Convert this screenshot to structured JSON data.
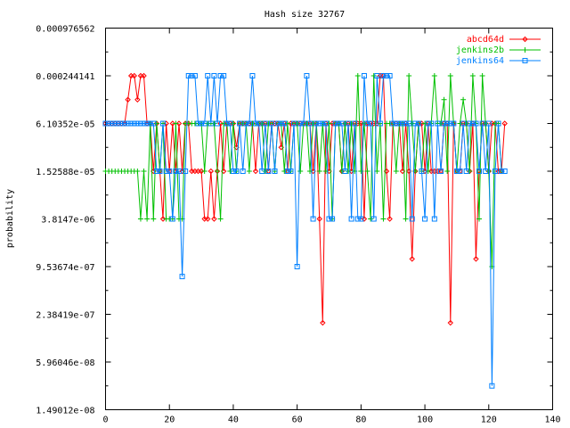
{
  "chart_data": {
    "type": "line",
    "title": "Hash size 32767",
    "xlabel": "",
    "ylabel": "probability",
    "xlim": [
      0,
      140
    ],
    "ylim": [
      1.49012e-08,
      0.000976562
    ],
    "yscale": "log",
    "x_ticks": [
      "0",
      "20",
      "40",
      "60",
      "80",
      "100",
      "120",
      "140"
    ],
    "y_ticks": [
      "0.000976562",
      "0.000244141",
      "6.10352e-05",
      "1.52588e-05",
      "3.8147e-06",
      "9.53674e-07",
      "2.38419e-07",
      "5.96046e-08",
      "1.49012e-08"
    ],
    "grid": false,
    "legend_position": "top-right",
    "series": [
      {
        "name": "abcd64d",
        "color": "#ff0000",
        "marker": "diamond",
        "x": [
          0,
          1,
          2,
          3,
          4,
          5,
          6,
          7,
          8,
          9,
          10,
          11,
          12,
          13,
          14,
          15,
          16,
          17,
          18,
          19,
          20,
          21,
          22,
          23,
          24,
          25,
          26,
          27,
          28,
          29,
          30,
          31,
          32,
          33,
          34,
          35,
          36,
          37,
          38,
          39,
          40,
          41,
          42,
          43,
          44,
          45,
          46,
          47,
          48,
          49,
          50,
          51,
          52,
          53,
          54,
          55,
          56,
          57,
          58,
          59,
          60,
          61,
          62,
          63,
          64,
          65,
          66,
          67,
          68,
          69,
          70,
          71,
          72,
          73,
          74,
          75,
          76,
          77,
          78,
          79,
          80,
          81,
          82,
          83,
          84,
          85,
          86,
          87,
          88,
          89,
          90,
          91,
          92,
          93,
          94,
          95,
          96,
          97,
          98,
          99,
          100,
          101,
          102,
          103,
          104,
          105,
          106,
          107,
          108,
          109,
          110,
          111,
          112,
          113,
          114,
          115,
          116,
          117,
          118,
          119,
          120,
          121,
          122,
          123,
          124,
          125
        ],
        "values": [
          6.10352e-05,
          6.10352e-05,
          6.10352e-05,
          6.10352e-05,
          6.10352e-05,
          6.10352e-05,
          6.10352e-05,
          0.00012207,
          0.000244141,
          0.000244141,
          0.00012207,
          0.000244141,
          0.000244141,
          6.10352e-05,
          6.10352e-05,
          1.52588e-05,
          6.10352e-05,
          1.52588e-05,
          3.8147e-06,
          6.10352e-05,
          1.52588e-05,
          6.10352e-05,
          1.52588e-05,
          6.10352e-05,
          1.52588e-05,
          6.10352e-05,
          6.10352e-05,
          1.52588e-05,
          1.52588e-05,
          1.52588e-05,
          1.52588e-05,
          3.8147e-06,
          3.8147e-06,
          1.52588e-05,
          3.8147e-06,
          1.52588e-05,
          6.10352e-05,
          1.52588e-05,
          6.10352e-05,
          6.10352e-05,
          6.10352e-05,
          3.05176e-05,
          6.10352e-05,
          6.10352e-05,
          6.10352e-05,
          6.10352e-05,
          6.10352e-05,
          1.52588e-05,
          6.10352e-05,
          6.10352e-05,
          6.10352e-05,
          1.52588e-05,
          6.10352e-05,
          6.10352e-05,
          6.10352e-05,
          3.05176e-05,
          6.10352e-05,
          1.52588e-05,
          6.10352e-05,
          6.10352e-05,
          6.10352e-05,
          6.10352e-05,
          6.10352e-05,
          6.10352e-05,
          6.10352e-05,
          1.52588e-05,
          6.10352e-05,
          3.8147e-06,
          1.86265e-07,
          6.10352e-05,
          1.52588e-05,
          6.10352e-05,
          6.10352e-05,
          6.10352e-05,
          1.52588e-05,
          6.10352e-05,
          6.10352e-05,
          1.52588e-05,
          6.10352e-05,
          6.10352e-05,
          6.10352e-05,
          3.8147e-06,
          6.10352e-05,
          6.10352e-05,
          6.10352e-05,
          6.10352e-05,
          0.000244141,
          0.000244141,
          1.52588e-05,
          3.8147e-06,
          6.10352e-05,
          6.10352e-05,
          6.10352e-05,
          1.52588e-05,
          6.10352e-05,
          1.52588e-05,
          1.19209e-06,
          1.52588e-05,
          6.10352e-05,
          6.10352e-05,
          1.52588e-05,
          6.10352e-05,
          1.52588e-05,
          1.52588e-05,
          1.52588e-05,
          1.52588e-05,
          6.10352e-05,
          6.10352e-05,
          1.86265e-07,
          6.10352e-05,
          1.52588e-05,
          1.52588e-05,
          6.10352e-05,
          6.10352e-05,
          1.52588e-05,
          6.10352e-05,
          1.19209e-06,
          1.52588e-05,
          6.10352e-05,
          6.10352e-05,
          1.52588e-05,
          6.10352e-05,
          6.10352e-05,
          1.52588e-05,
          1.52588e-05,
          6.10352e-05
        ]
      },
      {
        "name": "jenkins2b",
        "color": "#00c000",
        "marker": "plus",
        "x": [
          0,
          1,
          2,
          3,
          4,
          5,
          6,
          7,
          8,
          9,
          10,
          11,
          12,
          13,
          14,
          15,
          16,
          17,
          18,
          19,
          20,
          21,
          22,
          23,
          24,
          25,
          26,
          27,
          28,
          29,
          30,
          31,
          32,
          33,
          34,
          35,
          36,
          37,
          38,
          39,
          40,
          41,
          42,
          43,
          44,
          45,
          46,
          47,
          48,
          49,
          50,
          51,
          52,
          53,
          54,
          55,
          56,
          57,
          58,
          59,
          60,
          61,
          62,
          63,
          64,
          65,
          66,
          67,
          68,
          69,
          70,
          71,
          72,
          73,
          74,
          75,
          76,
          77,
          78,
          79,
          80,
          81,
          82,
          83,
          84,
          85,
          86,
          87,
          88,
          89,
          90,
          91,
          92,
          93,
          94,
          95,
          96,
          97,
          98,
          99,
          100,
          101,
          102,
          103,
          104,
          105,
          106,
          107,
          108,
          109,
          110,
          111,
          112,
          113,
          114,
          115,
          116,
          117,
          118,
          119,
          120,
          121,
          122,
          123,
          124
        ],
        "values": [
          1.52588e-05,
          1.52588e-05,
          1.52588e-05,
          1.52588e-05,
          1.52588e-05,
          1.52588e-05,
          1.52588e-05,
          1.52588e-05,
          1.52588e-05,
          1.52588e-05,
          1.52588e-05,
          3.8147e-06,
          1.52588e-05,
          3.8147e-06,
          6.10352e-05,
          3.8147e-06,
          6.10352e-05,
          1.52588e-05,
          6.10352e-05,
          3.8147e-06,
          3.8147e-06,
          3.8147e-06,
          6.10352e-05,
          3.8147e-06,
          3.8147e-06,
          6.10352e-05,
          6.10352e-05,
          6.10352e-05,
          6.10352e-05,
          6.10352e-05,
          6.10352e-05,
          1.52588e-05,
          6.10352e-05,
          6.10352e-05,
          6.10352e-05,
          1.52588e-05,
          3.8147e-06,
          6.10352e-05,
          6.10352e-05,
          1.52588e-05,
          6.10352e-05,
          1.52588e-05,
          6.10352e-05,
          6.10352e-05,
          6.10352e-05,
          1.52588e-05,
          6.10352e-05,
          6.10352e-05,
          6.10352e-05,
          6.10352e-05,
          1.52588e-05,
          6.10352e-05,
          6.10352e-05,
          1.52588e-05,
          6.10352e-05,
          6.10352e-05,
          1.52588e-05,
          6.10352e-05,
          1.52588e-05,
          6.10352e-05,
          6.10352e-05,
          1.52588e-05,
          6.10352e-05,
          6.10352e-05,
          1.52588e-05,
          6.10352e-05,
          6.10352e-05,
          1.52588e-05,
          6.10352e-05,
          1.52588e-05,
          6.10352e-05,
          3.8147e-06,
          6.10352e-05,
          6.10352e-05,
          1.52588e-05,
          6.10352e-05,
          1.52588e-05,
          6.10352e-05,
          1.52588e-05,
          0.000244141,
          1.52588e-05,
          6.10352e-05,
          1.52588e-05,
          3.8147e-06,
          0.000244141,
          1.52588e-05,
          6.10352e-05,
          3.8147e-06,
          6.10352e-05,
          6.10352e-05,
          6.10352e-05,
          1.52588e-05,
          6.10352e-05,
          6.10352e-05,
          3.8147e-06,
          0.000244141,
          6.10352e-05,
          1.52588e-05,
          6.10352e-05,
          1.52588e-05,
          6.10352e-05,
          1.52588e-05,
          6.10352e-05,
          0.000244141,
          6.10352e-05,
          6.10352e-05,
          0.00012207,
          1.52588e-05,
          0.000244141,
          6.10352e-05,
          1.52588e-05,
          6.10352e-05,
          0.00012207,
          6.10352e-05,
          1.52588e-05,
          0.000244141,
          6.10352e-05,
          3.8147e-06,
          0.000244141,
          6.10352e-05,
          1.52588e-05,
          9.53674e-07,
          6.10352e-05,
          6.10352e-05,
          1.52588e-05
        ]
      },
      {
        "name": "jenkins64",
        "color": "#0080ff",
        "marker": "square",
        "x": [
          0,
          1,
          2,
          3,
          4,
          5,
          6,
          7,
          8,
          9,
          10,
          11,
          12,
          13,
          14,
          15,
          16,
          17,
          18,
          19,
          20,
          21,
          22,
          23,
          24,
          25,
          26,
          27,
          28,
          29,
          30,
          31,
          32,
          33,
          34,
          35,
          36,
          37,
          38,
          39,
          40,
          41,
          42,
          43,
          44,
          45,
          46,
          47,
          48,
          49,
          50,
          51,
          52,
          53,
          54,
          55,
          56,
          57,
          58,
          59,
          60,
          61,
          62,
          63,
          64,
          65,
          66,
          67,
          68,
          69,
          70,
          71,
          72,
          73,
          74,
          75,
          76,
          77,
          78,
          79,
          80,
          81,
          82,
          83,
          84,
          85,
          86,
          87,
          88,
          89,
          90,
          91,
          92,
          93,
          94,
          95,
          96,
          97,
          98,
          99,
          100,
          101,
          102,
          103,
          104,
          105,
          106,
          107,
          108,
          109,
          110,
          111,
          112,
          113,
          114,
          115,
          116,
          117,
          118,
          119,
          120,
          121,
          122,
          123,
          124,
          125
        ],
        "values": [
          6.10352e-05,
          6.10352e-05,
          6.10352e-05,
          6.10352e-05,
          6.10352e-05,
          6.10352e-05,
          6.10352e-05,
          6.10352e-05,
          6.10352e-05,
          6.10352e-05,
          6.10352e-05,
          6.10352e-05,
          6.10352e-05,
          6.10352e-05,
          6.10352e-05,
          6.10352e-05,
          1.52588e-05,
          1.52588e-05,
          6.10352e-05,
          1.52588e-05,
          1.52588e-05,
          3.8147e-06,
          1.52588e-05,
          1.52588e-05,
          7.15256e-07,
          1.52588e-05,
          0.000244141,
          0.000244141,
          0.000244141,
          6.10352e-05,
          6.10352e-05,
          6.10352e-05,
          0.000244141,
          6.10352e-05,
          0.000244141,
          6.10352e-05,
          0.000244141,
          0.000244141,
          6.10352e-05,
          6.10352e-05,
          1.52588e-05,
          1.52588e-05,
          6.10352e-05,
          1.52588e-05,
          6.10352e-05,
          6.10352e-05,
          0.000244141,
          6.10352e-05,
          6.10352e-05,
          1.52588e-05,
          6.10352e-05,
          1.52588e-05,
          6.10352e-05,
          1.52588e-05,
          6.10352e-05,
          6.10352e-05,
          6.10352e-05,
          1.52588e-05,
          1.52588e-05,
          6.10352e-05,
          9.53674e-07,
          6.10352e-05,
          6.10352e-05,
          0.000244141,
          6.10352e-05,
          3.8147e-06,
          6.10352e-05,
          6.10352e-05,
          6.10352e-05,
          6.10352e-05,
          3.8147e-06,
          3.8147e-06,
          6.10352e-05,
          6.10352e-05,
          6.10352e-05,
          1.52588e-05,
          6.10352e-05,
          3.8147e-06,
          6.10352e-05,
          3.8147e-06,
          3.8147e-06,
          0.000244141,
          6.10352e-05,
          6.10352e-05,
          3.8147e-06,
          0.000244141,
          6.10352e-05,
          0.000244141,
          0.000244141,
          0.000244141,
          6.10352e-05,
          6.10352e-05,
          6.10352e-05,
          6.10352e-05,
          6.10352e-05,
          6.10352e-05,
          3.8147e-06,
          6.10352e-05,
          6.10352e-05,
          1.52588e-05,
          3.8147e-06,
          6.10352e-05,
          6.10352e-05,
          3.8147e-06,
          6.10352e-05,
          1.52588e-05,
          6.10352e-05,
          6.10352e-05,
          6.10352e-05,
          6.10352e-05,
          1.52588e-05,
          1.52588e-05,
          6.10352e-05,
          1.52588e-05,
          6.10352e-05,
          6.10352e-05,
          6.10352e-05,
          1.52588e-05,
          6.10352e-05,
          1.52588e-05,
          6.10352e-05,
          2.98023e-08,
          1.52588e-05,
          6.10352e-05,
          1.52588e-05,
          1.52588e-05
        ]
      }
    ]
  }
}
